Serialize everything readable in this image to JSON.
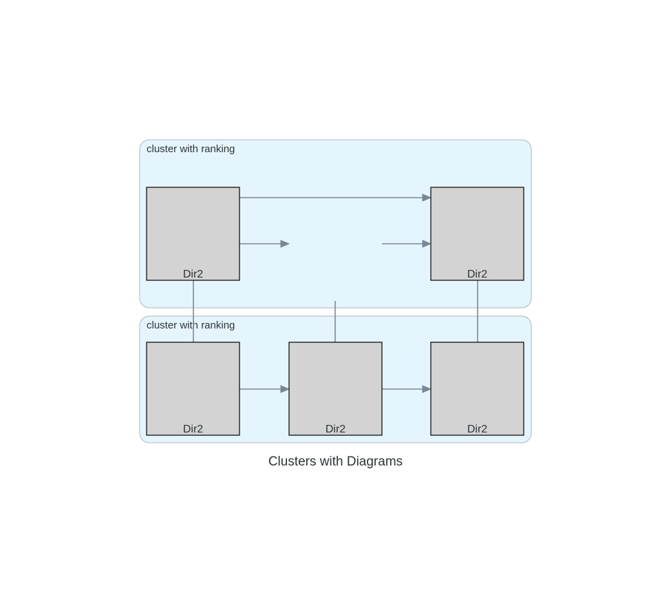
{
  "diagram": {
    "title": "Clusters with Diagrams",
    "colors": {
      "cluster_fill": "#e5f5fd",
      "cluster_border": "#aeb6be",
      "node_fill": "#d3d3d3",
      "node_border": "#000000",
      "edge": "#7b8894",
      "text": "#2d3436"
    },
    "clusters": [
      {
        "id": "top",
        "label": "cluster with ranking"
      },
      {
        "id": "bottom",
        "label": "cluster with ranking"
      }
    ],
    "nodes": [
      {
        "id": "top-left",
        "cluster": "top",
        "label": "Dir2"
      },
      {
        "id": "top-middle",
        "cluster": "top",
        "label": ""
      },
      {
        "id": "top-right",
        "cluster": "top",
        "label": "Dir2"
      },
      {
        "id": "bottom-left",
        "cluster": "bottom",
        "label": "Dir2"
      },
      {
        "id": "bottom-middle",
        "cluster": "bottom",
        "label": "Dir2"
      },
      {
        "id": "bottom-right",
        "cluster": "bottom",
        "label": "Dir2"
      }
    ],
    "edges": [
      {
        "from": "top-left",
        "to": "top-right",
        "arrow": true
      },
      {
        "from": "top-left",
        "to": "top-middle",
        "arrow": true
      },
      {
        "from": "top-middle",
        "to": "top-right",
        "arrow": true
      },
      {
        "from": "top-left",
        "to": "bottom-left",
        "arrow": false
      },
      {
        "from": "top-middle",
        "to": "bottom-middle",
        "arrow": false
      },
      {
        "from": "top-right",
        "to": "bottom-right",
        "arrow": false
      },
      {
        "from": "bottom-left",
        "to": "bottom-middle",
        "arrow": true
      },
      {
        "from": "bottom-middle",
        "to": "bottom-right",
        "arrow": true
      }
    ]
  }
}
